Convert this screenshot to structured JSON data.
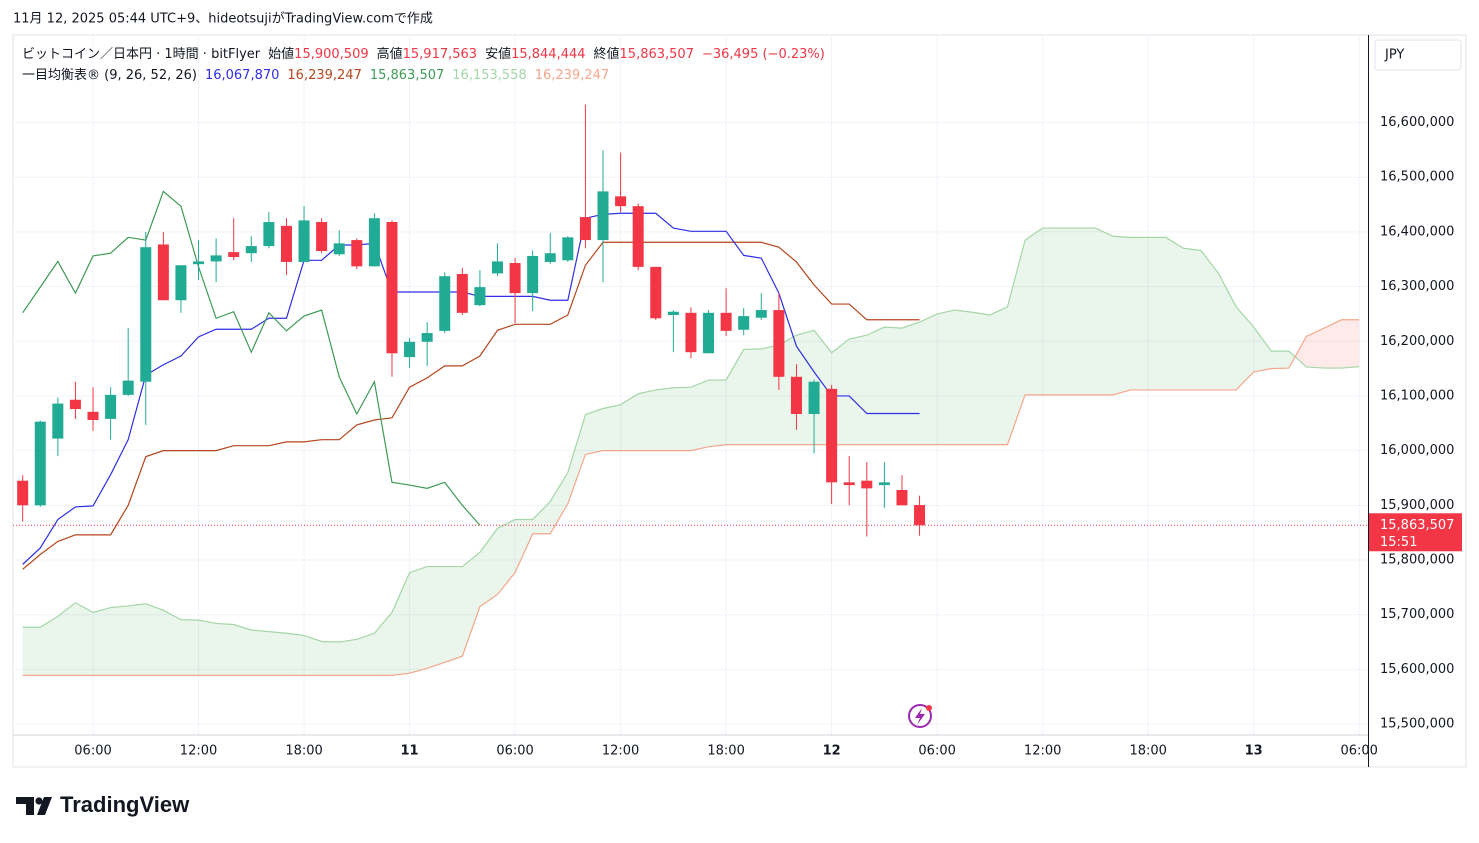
{
  "header": {
    "credit": "11月 12, 2025 05:44 UTC+9、hideotsujiがTradingView.comで作成"
  },
  "footer": {
    "brand": "TradingView"
  },
  "chart_data": {
    "type": "candlestick",
    "symbol": "ビットコイン／日本円 · 1時間 · bitFlyer",
    "ohlc_names": [
      "始値",
      "高値",
      "安値",
      "終値"
    ],
    "ohlc_labels": [
      "15,900,509",
      "15,917,563",
      "15,844,444",
      "15,863,507"
    ],
    "change_label": "−36,495 (−0.23%)",
    "indicator": "一目均衡表® (9, 26, 52, 26)",
    "currency": "JPY",
    "last_price_label": "15,863,507",
    "countdown": "15:51",
    "grid": true,
    "xlim": [
      1.45,
      78.5
    ],
    "xticks": [
      {
        "value": 6,
        "label": "06:00"
      },
      {
        "value": 12,
        "label": "12:00"
      },
      {
        "value": 18,
        "label": "18:00"
      },
      {
        "value": 24,
        "label": "11"
      },
      {
        "value": 30,
        "label": "06:00"
      },
      {
        "value": 36,
        "label": "12:00"
      },
      {
        "value": 42,
        "label": "18:00"
      },
      {
        "value": 48,
        "label": "12"
      },
      {
        "value": 54,
        "label": "06:00"
      },
      {
        "value": 60,
        "label": "12:00"
      },
      {
        "value": 66,
        "label": "18:00"
      },
      {
        "value": 72,
        "label": "13"
      },
      {
        "value": 78,
        "label": "06:00"
      }
    ],
    "ylim": [
      15480000,
      16760000
    ],
    "yticks": [
      {
        "value": 15500000,
        "label": "15,500,000"
      },
      {
        "value": 15600000,
        "label": "15,600,000"
      },
      {
        "value": 15700000,
        "label": "15,700,000"
      },
      {
        "value": 15800000,
        "label": "15,800,000"
      },
      {
        "value": 15900000,
        "label": "15,900,000"
      },
      {
        "value": 16000000,
        "label": "16,000,000"
      },
      {
        "value": 16100000,
        "label": "16,100,000"
      },
      {
        "value": 16200000,
        "label": "16,200,000"
      },
      {
        "value": 16300000,
        "label": "16,300,000"
      },
      {
        "value": 16400000,
        "label": "16,400,000"
      },
      {
        "value": 16500000,
        "label": "16,500,000"
      },
      {
        "value": 16600000,
        "label": "16,600,000"
      }
    ],
    "candles": {
      "up_color": "#22ab94",
      "down_color": "#f23645",
      "x": [
        2,
        3,
        4,
        5,
        6,
        7,
        8,
        9,
        10,
        11,
        12,
        13,
        14,
        15,
        16,
        17,
        18,
        19,
        20,
        21,
        22,
        23,
        24,
        25,
        26,
        27,
        28,
        29,
        30,
        31,
        32,
        33,
        34,
        35,
        36,
        37,
        38,
        39,
        40,
        41,
        42,
        43,
        44,
        45,
        46,
        47,
        48,
        49,
        50,
        51,
        52,
        53
      ],
      "open": [
        15945000,
        15900000,
        16022000,
        16093000,
        16071000,
        16058000,
        16102000,
        16126000,
        16377000,
        16275000,
        16341000,
        16346000,
        16363000,
        16361000,
        16374000,
        16411000,
        16345000,
        16418000,
        16359000,
        16385000,
        16337000,
        16418000,
        16171000,
        16199000,
        16219000,
        16323000,
        16266000,
        16324000,
        16343000,
        16288000,
        16345000,
        16348000,
        16427000,
        16385000,
        16465000,
        16447000,
        16336000,
        16248000,
        16252000,
        16178000,
        16252000,
        16221000,
        16243000,
        16257000,
        16135000,
        16067000,
        16113000,
        15942000,
        15945000,
        15937000,
        15928000,
        15900509
      ],
      "high": [
        15955000,
        16055000,
        16097000,
        16126000,
        16116000,
        16116000,
        16224000,
        16400000,
        16400000,
        16339000,
        16385000,
        16388000,
        16425000,
        16392000,
        16436000,
        16425000,
        16447000,
        16425000,
        16403000,
        16388000,
        16434000,
        16421000,
        16206000,
        16235000,
        16326000,
        16334000,
        16330000,
        16379000,
        16352000,
        16366000,
        16398000,
        16392000,
        16633000,
        16549000,
        16545000,
        16452000,
        16336000,
        16257000,
        16262000,
        16257000,
        16297000,
        16261000,
        16288000,
        16288000,
        16158000,
        16130000,
        16120000,
        15990000,
        15979000,
        15979000,
        15955000,
        15917563
      ],
      "low": [
        15870000,
        15897000,
        15990000,
        16058000,
        16036000,
        16020000,
        16100000,
        16047000,
        16275000,
        16252000,
        16312000,
        16308000,
        16348000,
        16345000,
        16370000,
        16321000,
        16345000,
        16361000,
        16356000,
        16332000,
        16337000,
        16135000,
        16151000,
        16155000,
        16215000,
        16248000,
        16264000,
        16319000,
        16233000,
        16255000,
        16341000,
        16345000,
        16370000,
        16308000,
        16436000,
        16330000,
        16239000,
        16180000,
        16169000,
        16178000,
        16210000,
        16211000,
        16239000,
        16111000,
        16038000,
        15995000,
        15902000,
        15900000,
        15843000,
        15895000,
        15900000,
        15844444
      ],
      "close": [
        15900000,
        16053000,
        16086000,
        16076000,
        16056000,
        16102000,
        16128000,
        16372000,
        16275000,
        16339000,
        16346000,
        16357000,
        16354000,
        16374000,
        16418000,
        16345000,
        16421000,
        16365000,
        16379000,
        16337000,
        16425000,
        16178000,
        16199000,
        16215000,
        16319000,
        16252000,
        16299000,
        16346000,
        16288000,
        16356000,
        16361000,
        16390000,
        16385000,
        16474000,
        16447000,
        16336000,
        16242000,
        16254000,
        16180000,
        16252000,
        16219000,
        16246000,
        16257000,
        16135000,
        16067000,
        16126000,
        15942000,
        15937000,
        15931000,
        15942000,
        15900000,
        15863507
      ]
    },
    "x": [
      2,
      3,
      4,
      5,
      6,
      7,
      8,
      9,
      10,
      11,
      12,
      13,
      14,
      15,
      16,
      17,
      18,
      19,
      20,
      21,
      22,
      23,
      24,
      25,
      26,
      27,
      28,
      29,
      30,
      31,
      32,
      33,
      34,
      35,
      36,
      37,
      38,
      39,
      40,
      41,
      42,
      43,
      44,
      45,
      46,
      47,
      48,
      49,
      50,
      51,
      52,
      53,
      54,
      55,
      56,
      57,
      58,
      59,
      60,
      61,
      62,
      63,
      64,
      65,
      66,
      67,
      68,
      69,
      70,
      71,
      72,
      73,
      74,
      75,
      76,
      77,
      78
    ],
    "cloud_colors": [
      "rgba(67,160,71,0.11)",
      "rgba(244,67,54,0.11)"
    ],
    "series": [
      {
        "color": "#2f2fe6",
        "value_label": "16,067,870",
        "values": [
          15792000,
          15822000,
          15874000,
          15897000,
          15899000,
          15956000,
          16020000,
          16138000,
          16157000,
          16173000,
          16208000,
          16222000,
          16222000,
          16222000,
          16242000,
          16242000,
          16348000,
          16348000,
          16376000,
          16376000,
          16379000,
          16290000,
          16290000,
          16290000,
          16290000,
          16290000,
          16282000,
          16282000,
          16282000,
          16282000,
          16275000,
          16275000,
          16425000,
          16432000,
          16434000,
          16434000,
          16434000,
          16407000,
          16401000,
          16401000,
          16401000,
          16357000,
          16352000,
          16288000,
          16191000,
          16144000,
          16100000,
          16100000,
          16067870,
          16067870,
          16067870,
          16067870,
          null,
          null,
          null,
          null,
          null,
          null,
          null,
          null,
          null,
          null,
          null,
          null,
          null,
          null,
          null,
          null,
          null,
          null,
          null,
          null,
          null,
          null,
          null,
          null,
          null
        ]
      },
      {
        "color": "#b5461d",
        "value_label": "16,239,247",
        "values": [
          15783000,
          15810000,
          15834000,
          15846000,
          15846000,
          15846000,
          15900000,
          15989000,
          16000000,
          16000000,
          16000000,
          16000000,
          16009000,
          16009000,
          16009000,
          16016000,
          16016000,
          16020000,
          16020000,
          16047000,
          16056000,
          16060000,
          16116000,
          16133000,
          16155000,
          16155000,
          16173000,
          16220000,
          16231000,
          16231000,
          16231000,
          16248000,
          16339000,
          16381000,
          16381000,
          16381000,
          16381000,
          16381000,
          16381000,
          16381000,
          16381000,
          16381000,
          16381000,
          16372000,
          16345000,
          16303000,
          16268000,
          16268000,
          16239247,
          16239247,
          16239247,
          16239247,
          null,
          null,
          null,
          null,
          null,
          null,
          null,
          null,
          null,
          null,
          null,
          null,
          null,
          null,
          null,
          null,
          null,
          null,
          null,
          null,
          null,
          null,
          null,
          null,
          null
        ]
      },
      {
        "color": "#3f9a57",
        "value_label": "15,863,507",
        "values": [
          16252000,
          16299000,
          16346000,
          16288000,
          16356000,
          16361000,
          16390000,
          16385000,
          16474000,
          16447000,
          16336000,
          16242000,
          16254000,
          16180000,
          16252000,
          16219000,
          16246000,
          16257000,
          16135000,
          16067000,
          16126000,
          15942000,
          15937000,
          15931000,
          15942000,
          15900000,
          15863507,
          null,
          null,
          null,
          null,
          null,
          null,
          null,
          null,
          null,
          null,
          null,
          null,
          null,
          null,
          null,
          null,
          null,
          null,
          null,
          null,
          null,
          null,
          null,
          null,
          null,
          null,
          null,
          null,
          null,
          null,
          null,
          null,
          null,
          null,
          null,
          null,
          null,
          null,
          null,
          null,
          null,
          null,
          null,
          null,
          null,
          null,
          null,
          null,
          null,
          null
        ]
      },
      {
        "color": "#a5d6a7",
        "value_label": "16,153,558",
        "values": [
          15677000,
          15677000,
          15697000,
          15722000,
          15704000,
          15713000,
          15716000,
          15720000,
          15708000,
          15691000,
          15690000,
          15684000,
          15682000,
          15672000,
          15669000,
          15666000,
          15662000,
          15651000,
          15650000,
          15655000,
          15666000,
          15704000,
          15777000,
          15788000,
          15788000,
          15788000,
          15814000,
          15858000,
          15874000,
          15874000,
          15907000,
          15960000,
          16066000,
          16077000,
          16084000,
          16104000,
          16111000,
          16115000,
          16116000,
          16129000,
          16129000,
          16185000,
          16186000,
          16193000,
          16211000,
          16220000,
          16179000,
          16204000,
          16211000,
          16226000,
          16224000,
          16235000,
          16250000,
          16257000,
          16253000,
          16248000,
          16263000,
          16385000,
          16407000,
          16407000,
          16407000,
          16407000,
          16392000,
          16390000,
          16390000,
          16390000,
          16370000,
          16366000,
          16324000,
          16263000,
          16226000,
          16182000,
          16182000,
          16153000,
          16151000,
          16151000,
          16153558
        ]
      },
      {
        "color": "#f4a68c",
        "value_label": "16,239,247",
        "values": [
          15589000,
          15589000,
          15589000,
          15589000,
          15589000,
          15589000,
          15589000,
          15589000,
          15589000,
          15589000,
          15589000,
          15589000,
          15589000,
          15589000,
          15589000,
          15589000,
          15589000,
          15589000,
          15589000,
          15589000,
          15589000,
          15589000,
          15593000,
          15602000,
          15613000,
          15624000,
          15715000,
          15737000,
          15777000,
          15848000,
          15848000,
          15903000,
          15993000,
          16000000,
          16000000,
          16000000,
          16000000,
          16000000,
          16000000,
          16007000,
          16011000,
          16011000,
          16011000,
          16011000,
          16011000,
          16011000,
          16011000,
          16011000,
          16011000,
          16011000,
          16011000,
          16011000,
          16011000,
          16011000,
          16011000,
          16011000,
          16011000,
          16102000,
          16102000,
          16102000,
          16102000,
          16102000,
          16102000,
          16111000,
          16111000,
          16111000,
          16111000,
          16111000,
          16111000,
          16111000,
          16144000,
          16150000,
          16151000,
          16209000,
          16224000,
          16239247,
          16239247
        ]
      }
    ]
  }
}
